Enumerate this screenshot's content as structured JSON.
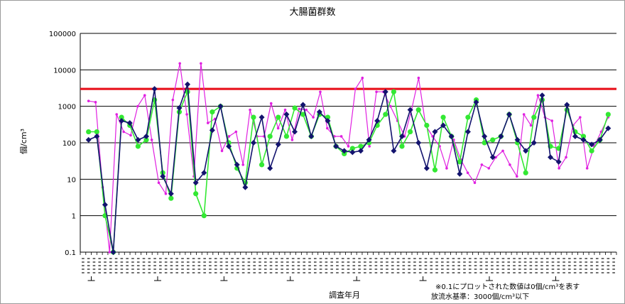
{
  "chart_data": {
    "type": "line",
    "title": "大腸菌群数",
    "xlabel": "調査年月",
    "ylabel": "個/cm³",
    "yscale": "log",
    "ylim": [
      0.1,
      100000
    ],
    "yticks": [
      "100000",
      "10000",
      "1000",
      "100",
      "10",
      "1",
      "0.1"
    ],
    "grid": true,
    "legend": "none",
    "colors": {
      "threshold": "#e8141e",
      "series_pink": "#e020e0",
      "series_green": "#33e833",
      "series_navy": "#13136e",
      "grid": "#000000"
    },
    "threshold": {
      "value": 3000
    },
    "x_count": 97,
    "series": [
      {
        "color_key": "series_pink",
        "marker": "dot",
        "values": [
          1400,
          1300,
          6,
          0.1,
          600,
          200,
          160,
          1000,
          2000,
          120,
          8,
          4,
          1500,
          15000,
          600,
          12,
          15000,
          350,
          450,
          60,
          150,
          200,
          25,
          800,
          150,
          150,
          1200,
          250,
          800,
          120,
          850,
          800,
          500,
          2500,
          250,
          150,
          150,
          80,
          3000,
          6000,
          80,
          2500,
          2500,
          1000,
          400,
          150,
          800,
          6000,
          300,
          150,
          80,
          20,
          120,
          35,
          15,
          8,
          25,
          20,
          40,
          60,
          25,
          12,
          600,
          300,
          2000,
          500,
          400,
          20,
          40,
          300,
          500,
          20,
          80,
          200,
          500
        ]
      },
      {
        "color_key": "series_green",
        "marker": "circle",
        "values": [
          200,
          200,
          1,
          0.1,
          500,
          300,
          80,
          120,
          1500,
          15,
          3,
          700,
          2500,
          4,
          1,
          700,
          1000,
          100,
          20,
          8,
          500,
          25,
          150,
          500,
          150,
          900,
          600,
          150,
          600,
          500,
          80,
          50,
          70,
          80,
          100,
          300,
          600,
          2500,
          80,
          200,
          800,
          300,
          18,
          500,
          150,
          30,
          500,
          1500,
          100,
          120,
          150,
          600,
          100,
          15,
          500,
          1500,
          80,
          70,
          800,
          200,
          150,
          60,
          120,
          600
        ]
      },
      {
        "color_key": "series_navy",
        "marker": "diamond",
        "values": [
          120,
          150,
          2,
          0.1,
          400,
          350,
          120,
          150,
          3000,
          12,
          4,
          900,
          4000,
          8,
          15,
          220,
          1000,
          80,
          25,
          6,
          100,
          500,
          20,
          90,
          600,
          200,
          1100,
          150,
          700,
          400,
          80,
          60,
          55,
          60,
          120,
          400,
          2500,
          60,
          150,
          800,
          100,
          20,
          200,
          300,
          150,
          14,
          200,
          1300,
          150,
          40,
          150,
          600,
          120,
          60,
          100,
          2000,
          40,
          30,
          1100,
          150,
          120,
          90,
          120,
          250
        ]
      }
    ],
    "notes": [
      "※0.1にプロットされた数値は0個/cm³を表す",
      "放流水基準：3000個/cm³以下"
    ]
  }
}
